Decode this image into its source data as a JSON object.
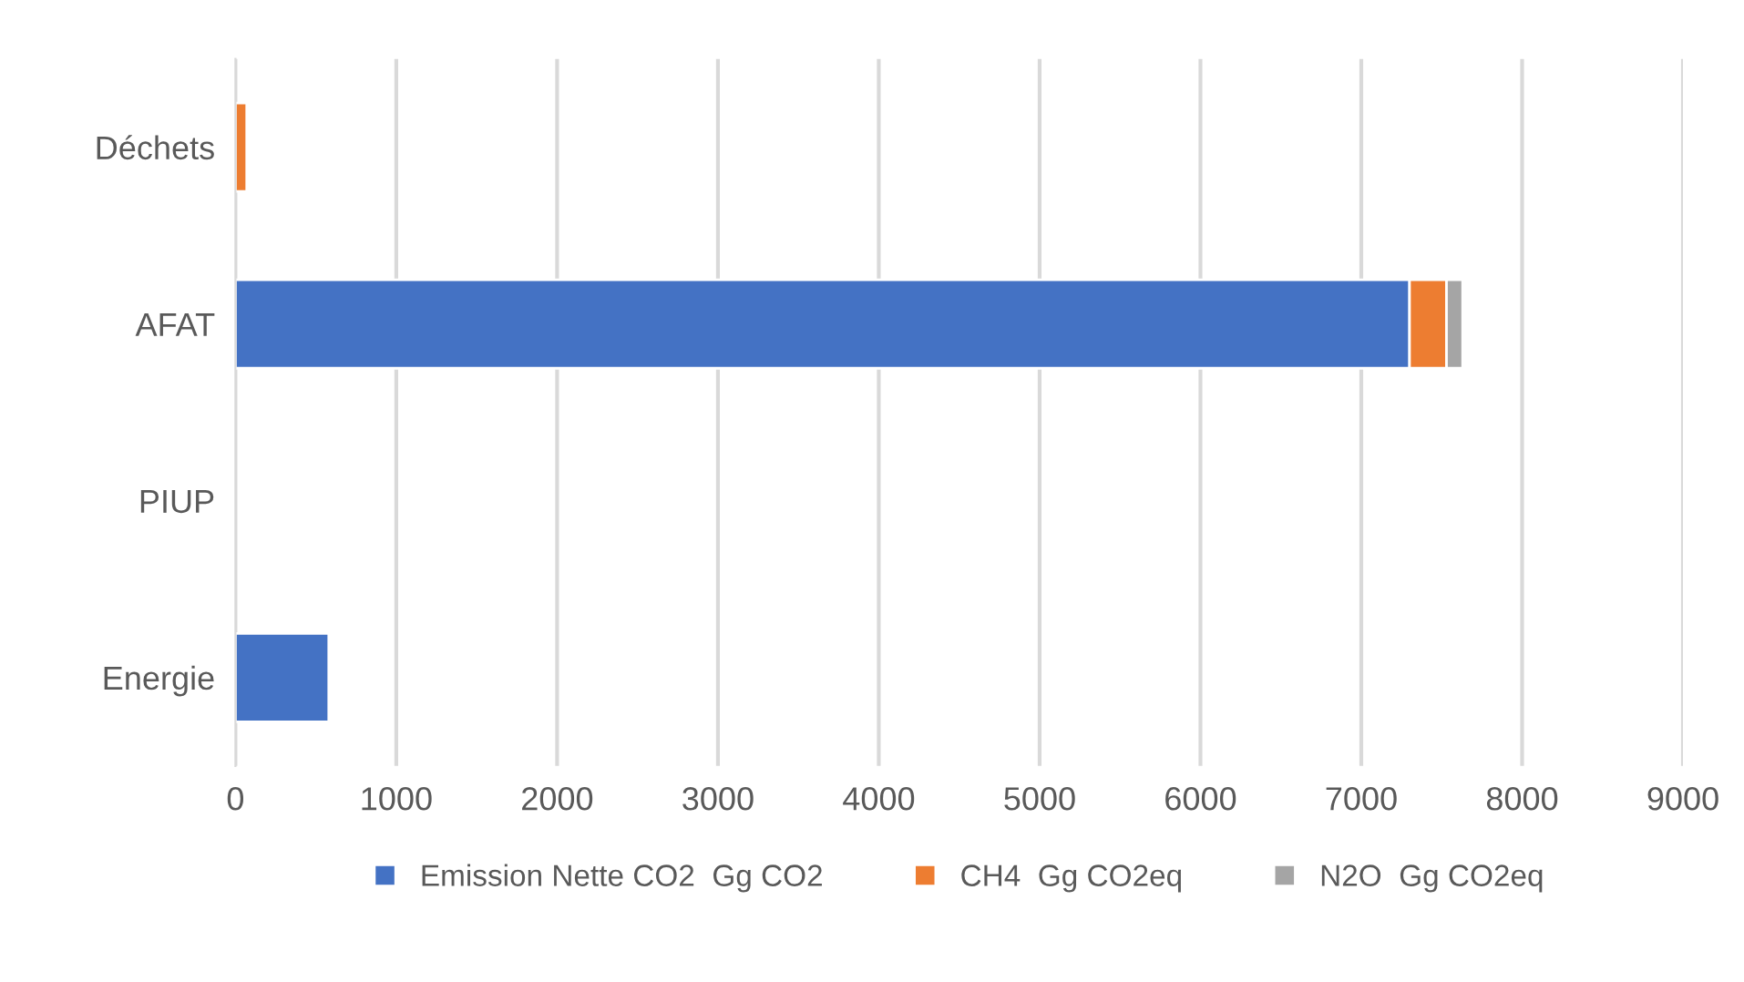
{
  "chart_data": {
    "type": "bar",
    "orientation": "horizontal",
    "stacked": true,
    "categories": [
      "Déchets",
      "AFAT",
      "PIUP",
      "Energie"
    ],
    "series": [
      {
        "name": "Emission Nette CO2  Gg CO2",
        "color": "#4472c4",
        "values": [
          null,
          7300,
          null,
          580
        ]
      },
      {
        "name": "CH4  Gg CO2eq",
        "color": "#ed7d31",
        "values": [
          70,
          230,
          null,
          null
        ]
      },
      {
        "name": "N2O  Gg CO2eq",
        "color": "#a5a5a5",
        "values": [
          null,
          100,
          null,
          null
        ]
      }
    ],
    "xlim": [
      0,
      9000
    ],
    "xticks": [
      0,
      1000,
      2000,
      3000,
      4000,
      5000,
      6000,
      7000,
      8000,
      9000
    ],
    "grid": "x",
    "legend": "bottom"
  }
}
